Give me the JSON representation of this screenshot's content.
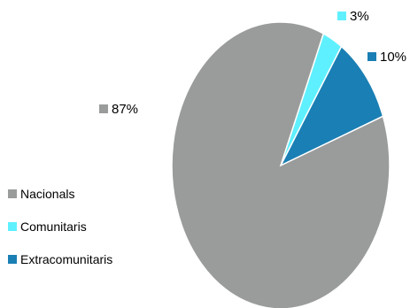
{
  "chart_data": {
    "type": "pie",
    "title": "",
    "legend_position": "left",
    "series": [
      {
        "name": "",
        "slices": [
          {
            "label": "Nacionals",
            "value": 87,
            "value_label": "87%",
            "color": "#9a9c9b"
          },
          {
            "label": "Comunitaris",
            "value": 3,
            "value_label": "3%",
            "color": "#5ff0ff"
          },
          {
            "label": "Extracomunitaris",
            "value": 10,
            "value_label": "10%",
            "color": "#1a7fb4"
          }
        ]
      }
    ]
  }
}
